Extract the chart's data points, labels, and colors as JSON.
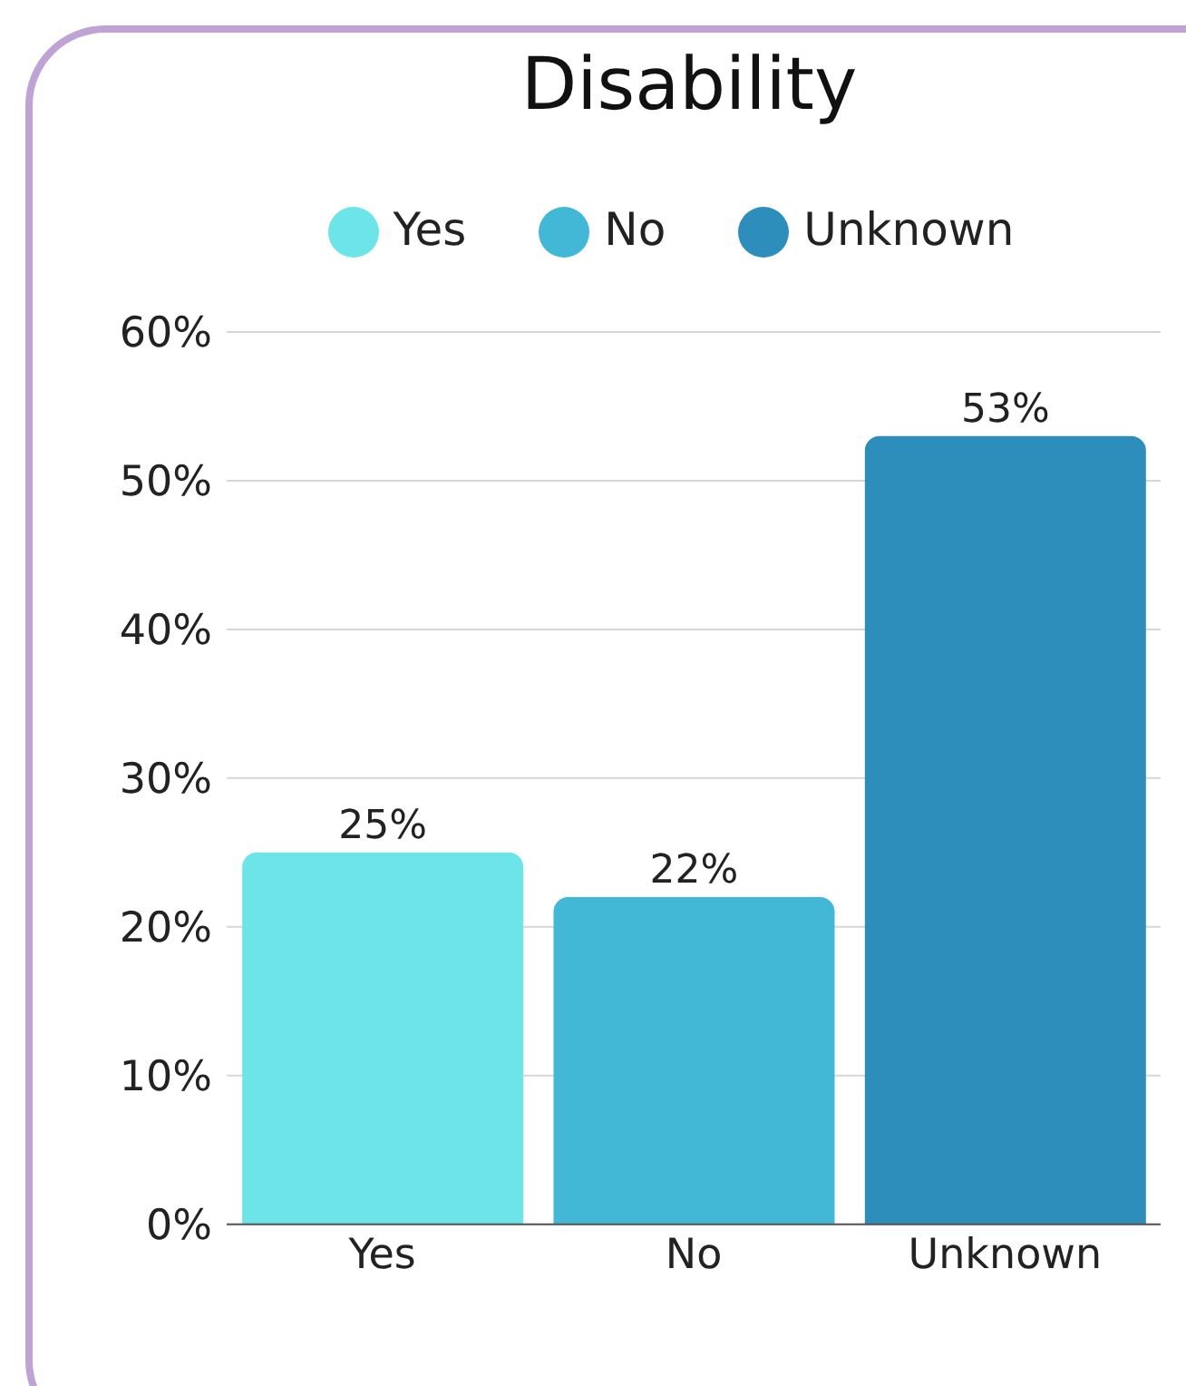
{
  "chart_data": {
    "type": "bar",
    "title": "Disability",
    "categories": [
      "Yes",
      "No",
      "Unknown"
    ],
    "stacked": true,
    "series": [
      {
        "name": "Yes",
        "color": "#6ce4e8",
        "values": [
          25,
          null,
          null
        ],
        "value_labels": [
          "25%",
          null,
          null
        ]
      },
      {
        "name": "No",
        "color": "#42b8d6",
        "values": [
          null,
          22,
          null
        ],
        "value_labels": [
          null,
          "22%",
          null
        ]
      },
      {
        "name": "Unknown",
        "color": "#2d8dbb",
        "values": [
          null,
          null,
          53
        ],
        "value_labels": [
          null,
          null,
          "53%"
        ]
      }
    ],
    "ylim": [
      0,
      60
    ],
    "yticks": [
      {
        "value": 0,
        "label": "0%"
      },
      {
        "value": 10,
        "label": "10%"
      },
      {
        "value": 20,
        "label": "20%"
      },
      {
        "value": 30,
        "label": "30%"
      },
      {
        "value": 40,
        "label": "40%"
      },
      {
        "value": 50,
        "label": "50%"
      },
      {
        "value": 60,
        "label": "60%"
      }
    ],
    "grid": "y",
    "legend": "top",
    "marker": "circle"
  }
}
